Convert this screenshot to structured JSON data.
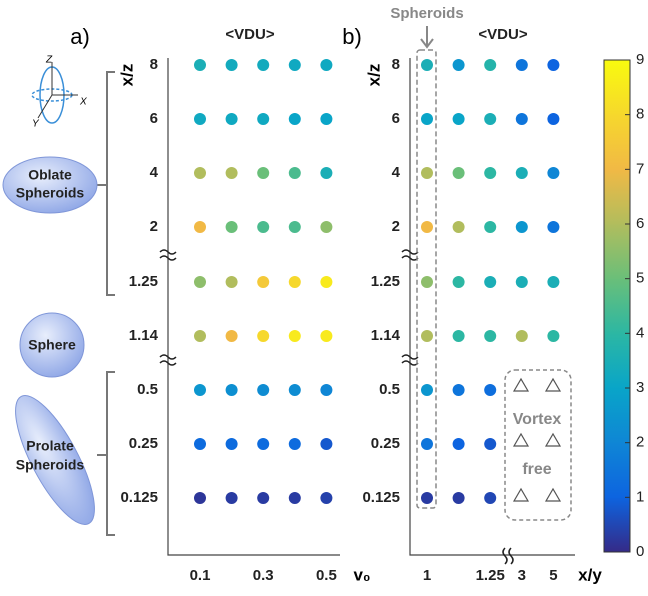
{
  "chart_data": [
    {
      "type": "dot-matrix",
      "panel_label": "a)",
      "title": "<VDU>",
      "ylabel": "x/z",
      "xlabel": "v₀",
      "x_categories": [
        "0.1",
        null,
        "0.3",
        null,
        "0.5"
      ],
      "y_categories": [
        "8",
        "6",
        "4",
        "2",
        "1.25",
        "1.14",
        "0.5",
        "0.25",
        "0.125"
      ],
      "values": [
        [
          3.5,
          3.3,
          3.3,
          3.2,
          3.2
        ],
        [
          3.2,
          3.2,
          3.2,
          3.0,
          3.0
        ],
        [
          6,
          6,
          5,
          4.5,
          3.5
        ],
        [
          7,
          5,
          4.5,
          4.5,
          5.5
        ],
        [
          5.5,
          6,
          7.5,
          8,
          8.5
        ],
        [
          6,
          7,
          8,
          8.5,
          8.5
        ],
        [
          2.5,
          2.3,
          2.2,
          2.2,
          2
        ],
        [
          1.2,
          1.2,
          1.2,
          1.2,
          0.8
        ],
        [
          0.2,
          0.3,
          0.3,
          0.3,
          0.4
        ]
      ]
    },
    {
      "type": "dot-matrix",
      "panel_label": "b)",
      "title": "<VDU>",
      "ylabel": "x/z",
      "xlabel": "x/y",
      "x_categories": [
        "1",
        null,
        "1.25",
        "3",
        "5"
      ],
      "y_categories": [
        "8",
        "6",
        "4",
        "2",
        "1.25",
        "1.14",
        "0.5",
        "0.25",
        "0.125"
      ],
      "values": [
        [
          3.5,
          2.5,
          3.8,
          1.5,
          1
        ],
        [
          3,
          3,
          3.5,
          1.5,
          1
        ],
        [
          6,
          5,
          4,
          3.5,
          2
        ],
        [
          7,
          6,
          4,
          2.5,
          1.5
        ],
        [
          5.5,
          4,
          3.5,
          3.5,
          3.5
        ],
        [
          6,
          4,
          4,
          6,
          4
        ],
        [
          2.5,
          1.5,
          1.3,
          null,
          null
        ],
        [
          1.5,
          1,
          0.8,
          null,
          null
        ],
        [
          0.3,
          0.3,
          0.5,
          null,
          null
        ]
      ]
    },
    {
      "type": "colorbar",
      "clim": [
        0,
        9
      ],
      "ticks": [
        0,
        1,
        2,
        3,
        4,
        5,
        6,
        7,
        8,
        9
      ],
      "colormap": [
        "#352a87",
        "#0d64e0",
        "#0f86d5",
        "#09a5c8",
        "#2cb7a3",
        "#6abf79",
        "#b1bd5d",
        "#f1b945",
        "#f6d82c",
        "#f9fb0e"
      ]
    }
  ],
  "annotations": {
    "spheroids": "Spheroids",
    "vortex": "Vortex",
    "free": "free",
    "oblate": [
      "Oblate",
      "Spheroids"
    ],
    "sphere": "Sphere",
    "prolate": [
      "Prolate",
      "Spheroids"
    ],
    "axes": [
      "Z",
      "X",
      "Y"
    ]
  }
}
